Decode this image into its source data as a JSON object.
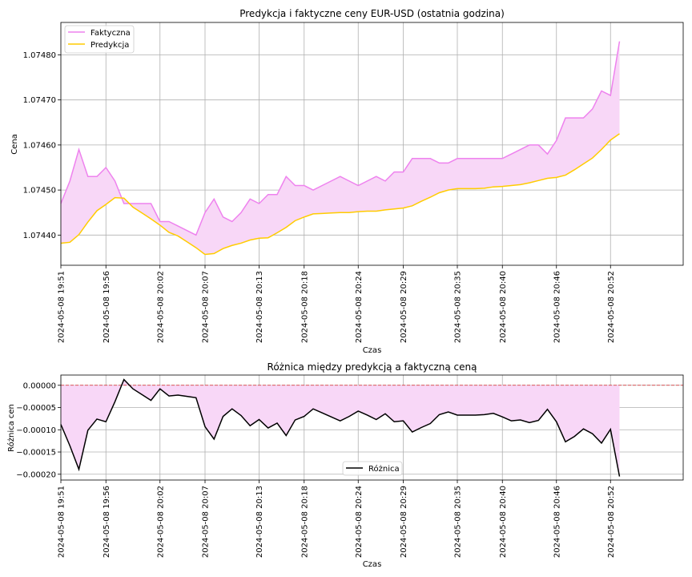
{
  "chart_data": [
    {
      "type": "line",
      "title": "Predykcja i faktyczne ceny EUR-USD (ostatnia godzina)",
      "xlabel": "Czas",
      "ylabel": "Cena",
      "grid": true,
      "legend_position": "top-left",
      "x_start": "2024-05-08 19:51",
      "x_step_minutes": 1,
      "x_ticks": [
        "2024-05-08 19:51",
        "2024-05-08 19:56",
        "2024-05-08 20:02",
        "2024-05-08 20:07",
        "2024-05-08 20:13",
        "2024-05-08 20:18",
        "2024-05-08 20:24",
        "2024-05-08 20:29",
        "2024-05-08 20:35",
        "2024-05-08 20:40",
        "2024-05-08 20:46",
        "2024-05-08 20:52"
      ],
      "y_ticks": [
        "1.07440",
        "1.07450",
        "1.07460",
        "1.07470",
        "1.07480"
      ],
      "ylim": [
        1.074333,
        1.074872
      ],
      "fill_between": {
        "color": "#f8d7f7"
      },
      "series": [
        {
          "name": "Faktyczna",
          "color": "#ee82ee",
          "values": [
            1.07447,
            1.07452,
            1.07459,
            1.07453,
            1.07453,
            1.07455,
            1.07452,
            1.07447,
            1.07447,
            1.07447,
            1.07447,
            1.07443,
            1.07443,
            1.07442,
            1.07441,
            1.0744,
            1.07445,
            1.07448,
            1.07444,
            1.07443,
            1.07445,
            1.07448,
            1.07447,
            1.07449,
            1.07449,
            1.07453,
            1.07451,
            1.07451,
            1.0745,
            1.07451,
            1.07452,
            1.07453,
            1.07452,
            1.07451,
            1.07452,
            1.07453,
            1.07452,
            1.07454,
            1.07454,
            1.07457,
            1.07457,
            1.07457,
            1.07456,
            1.07456,
            1.07457,
            1.07457,
            1.07457,
            1.07457,
            1.07457,
            1.07457,
            1.07458,
            1.07459,
            1.0746,
            1.0746,
            1.07458,
            1.07461,
            1.07466,
            1.07466,
            1.07466,
            1.07468,
            1.07472,
            1.07471,
            1.07483
          ]
        },
        {
          "name": "Predykcja",
          "color": "#ffcc00",
          "values": [
            1.074382,
            1.074384,
            1.074401,
            1.074429,
            1.074454,
            1.074468,
            1.074483,
            1.074482,
            1.074462,
            1.074449,
            1.074436,
            1.074422,
            1.074406,
            1.074398,
            1.074385,
            1.074372,
            1.074357,
            1.074359,
            1.07437,
            1.074377,
            1.074382,
            1.074389,
            1.074393,
            1.074394,
            1.074405,
            1.074417,
            1.074432,
            1.07444,
            1.074447,
            1.074448,
            1.074449,
            1.07445,
            1.07445,
            1.074452,
            1.074453,
            1.074453,
            1.074456,
            1.074458,
            1.07446,
            1.074465,
            1.074475,
            1.074484,
            1.074494,
            1.0745,
            1.074503,
            1.074503,
            1.074503,
            1.074504,
            1.074507,
            1.074508,
            1.07451,
            1.074512,
            1.074516,
            1.074521,
            1.074526,
            1.074528,
            1.074533,
            1.074545,
            1.074558,
            1.074571,
            1.07459,
            1.074611,
            1.074625
          ]
        }
      ]
    },
    {
      "type": "line",
      "title": "Różnica między predykcją a faktyczną ceną",
      "xlabel": "Czas",
      "ylabel": "Różnica cen",
      "grid": true,
      "legend_position": "lower-center",
      "x_ticks": [
        "2024-05-08 19:51",
        "2024-05-08 19:56",
        "2024-05-08 20:02",
        "2024-05-08 20:07",
        "2024-05-08 20:13",
        "2024-05-08 20:18",
        "2024-05-08 20:24",
        "2024-05-08 20:29",
        "2024-05-08 20:35",
        "2024-05-08 20:40",
        "2024-05-08 20:46",
        "2024-05-08 20:52"
      ],
      "y_ticks": [
        "0.00000",
        "−0.00005",
        "−0.00010",
        "−0.00015",
        "−0.00020"
      ],
      "ylim": [
        -0.000213,
        2.3e-05
      ],
      "zero_line": {
        "value": 0,
        "color": "#d62728",
        "style": "dashed"
      },
      "fill_between": {
        "color": "#f8d7f7"
      },
      "series": [
        {
          "name": "Różnica",
          "color": "#000000",
          "values": [
            -8.8e-05,
            -0.000136,
            -0.000189,
            -0.000101,
            -7.6e-05,
            -8.2e-05,
            -3.7e-05,
            1.3e-05,
            -8e-06,
            -2.1e-05,
            -3.4e-05,
            -8e-06,
            -2.4e-05,
            -2.2e-05,
            -2.5e-05,
            -2.8e-05,
            -9.3e-05,
            -0.000121,
            -7e-05,
            -5.3e-05,
            -6.8e-05,
            -9.1e-05,
            -7.7e-05,
            -9.6e-05,
            -8.5e-05,
            -0.000113,
            -7.8e-05,
            -7e-05,
            -5.3e-05,
            -6.2e-05,
            -7.1e-05,
            -8e-05,
            -7e-05,
            -5.8e-05,
            -6.7e-05,
            -7.7e-05,
            -6.4e-05,
            -8.2e-05,
            -8e-05,
            -0.000105,
            -9.5e-05,
            -8.6e-05,
            -6.6e-05,
            -6e-05,
            -6.7e-05,
            -6.7e-05,
            -6.7e-05,
            -6.6e-05,
            -6.3e-05,
            -7.1e-05,
            -8e-05,
            -7.8e-05,
            -8.4e-05,
            -7.9e-05,
            -5.4e-05,
            -8.2e-05,
            -0.000127,
            -0.000115,
            -9.8e-05,
            -0.000109,
            -0.00013,
            -9.9e-05,
            -0.000205
          ]
        }
      ]
    }
  ]
}
